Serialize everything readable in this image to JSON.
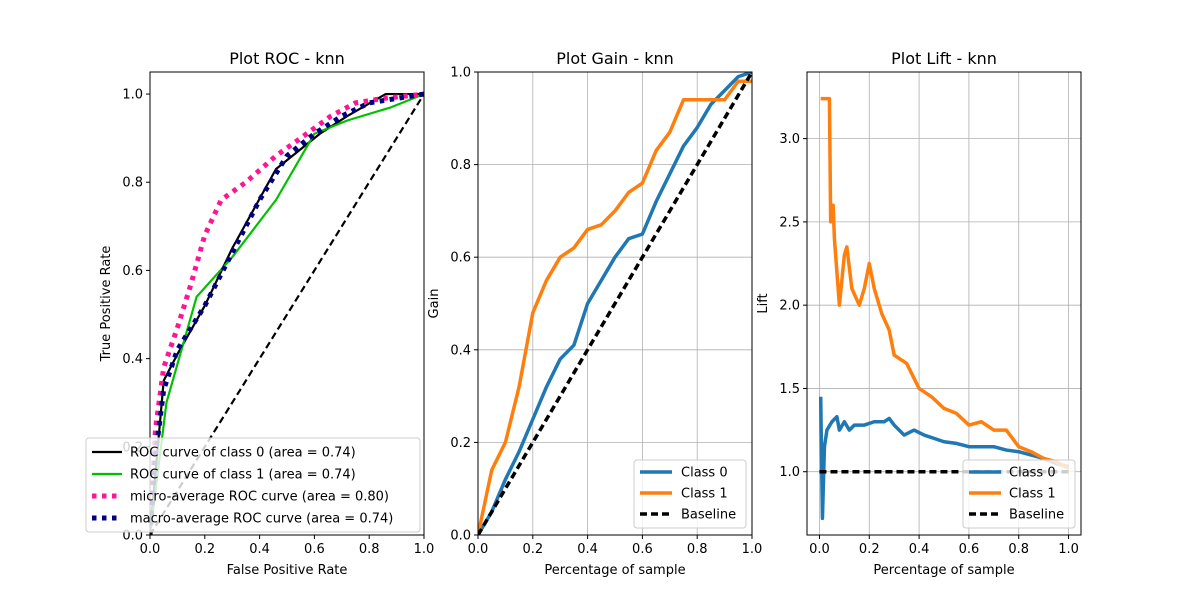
{
  "chart_data": [
    {
      "type": "line",
      "title": "Plot ROC - knn",
      "xlabel": "False Positive Rate",
      "ylabel": "True Positive Rate",
      "xlim": [
        0,
        1
      ],
      "ylim": [
        0,
        1.05
      ],
      "xticks": [
        0,
        0.2,
        0.4,
        0.6,
        0.8,
        1.0
      ],
      "xtick_labels": [
        "0.0",
        "0.2",
        "0.4",
        "0.6",
        "0.8",
        "1.0"
      ],
      "yticks": [
        0,
        0.2,
        0.4,
        0.6,
        0.8,
        1.0
      ],
      "ytick_labels": [
        "0.0",
        "0.2",
        "0.4",
        "0.6",
        "0.8",
        "1.0"
      ],
      "grid": false,
      "legend": "lower-left",
      "series": [
        {
          "name": "ROC curve of class 0 (area = 0.74)",
          "color": "#000000",
          "style": "solid",
          "x": [
            0,
            0.05,
            0.1,
            0.2,
            0.3,
            0.46,
            0.62,
            0.72,
            0.86,
            1.0
          ],
          "y": [
            0,
            0.35,
            0.41,
            0.52,
            0.65,
            0.83,
            0.91,
            0.95,
            1.0,
            1.0
          ]
        },
        {
          "name": "ROC curve of class 1 (area = 0.74)",
          "color": "#00c000",
          "style": "solid",
          "x": [
            0,
            0.06,
            0.17,
            0.3,
            0.46,
            0.6,
            0.72,
            0.88,
            1.0
          ],
          "y": [
            0,
            0.3,
            0.54,
            0.63,
            0.76,
            0.91,
            0.96,
            0.97,
            1.0
          ],
          "draw_y": [
            0,
            0.3,
            0.54,
            0.63,
            0.76,
            0.91,
            0.94,
            0.97,
            1.0
          ]
        },
        {
          "name": "micro-average ROC curve (area = 0.80)",
          "color": "#ff1493",
          "style": "dotted",
          "x": [
            0,
            0.02,
            0.05,
            0.1,
            0.15,
            0.2,
            0.26,
            0.35,
            0.46,
            0.55,
            0.66,
            0.75,
            0.85,
            1.0
          ],
          "y": [
            0,
            0.24,
            0.38,
            0.47,
            0.57,
            0.68,
            0.76,
            0.8,
            0.86,
            0.9,
            0.95,
            0.98,
            0.99,
            1.0
          ]
        },
        {
          "name": "macro-average ROC curve (area = 0.74)",
          "color": "#000080",
          "style": "dotted",
          "x": [
            0,
            0.02,
            0.05,
            0.1,
            0.2,
            0.3,
            0.4,
            0.5,
            0.6,
            0.7,
            0.8,
            0.9,
            1.0
          ],
          "y": [
            0,
            0.18,
            0.33,
            0.42,
            0.52,
            0.64,
            0.76,
            0.86,
            0.91,
            0.95,
            0.98,
            0.99,
            1.0
          ]
        },
        {
          "name": "",
          "color": "#000000",
          "style": "dashed",
          "x": [
            0,
            1
          ],
          "y": [
            0,
            1
          ]
        }
      ]
    },
    {
      "type": "line",
      "title": "Plot Gain - knn",
      "xlabel": "Percentage of sample",
      "ylabel": "Gain",
      "xlim": [
        0,
        1
      ],
      "ylim": [
        0,
        1
      ],
      "xticks": [
        0,
        0.2,
        0.4,
        0.6,
        0.8,
        1.0
      ],
      "xtick_labels": [
        "0.0",
        "0.2",
        "0.4",
        "0.6",
        "0.8",
        "1.0"
      ],
      "yticks": [
        0,
        0.2,
        0.4,
        0.6,
        0.8,
        1.0
      ],
      "ytick_labels": [
        "0.0",
        "0.2",
        "0.4",
        "0.6",
        "0.8",
        "1.0"
      ],
      "grid": true,
      "legend": "lower-right",
      "series": [
        {
          "name": "Class 0",
          "color": "#1f77b4",
          "style": "solid",
          "x": [
            0,
            0.05,
            0.1,
            0.15,
            0.2,
            0.25,
            0.3,
            0.35,
            0.4,
            0.45,
            0.5,
            0.55,
            0.6,
            0.65,
            0.7,
            0.75,
            0.8,
            0.85,
            0.9,
            0.95,
            1.0
          ],
          "y": [
            0,
            0.05,
            0.12,
            0.18,
            0.25,
            0.32,
            0.38,
            0.41,
            0.5,
            0.55,
            0.6,
            0.64,
            0.65,
            0.72,
            0.78,
            0.84,
            0.88,
            0.93,
            0.96,
            0.99,
            1.0
          ]
        },
        {
          "name": "Class 1",
          "color": "#ff7f0e",
          "style": "solid",
          "x": [
            0,
            0.05,
            0.1,
            0.15,
            0.2,
            0.25,
            0.3,
            0.35,
            0.4,
            0.45,
            0.5,
            0.55,
            0.6,
            0.65,
            0.7,
            0.75,
            0.8,
            0.85,
            0.9,
            0.95,
            1.0
          ],
          "y": [
            0,
            0.14,
            0.2,
            0.32,
            0.48,
            0.55,
            0.6,
            0.62,
            0.66,
            0.67,
            0.7,
            0.74,
            0.76,
            0.83,
            0.87,
            0.94,
            0.94,
            0.94,
            0.94,
            0.98,
            0.98
          ]
        },
        {
          "name": "Baseline",
          "color": "#000000",
          "style": "dashed",
          "x": [
            0,
            1
          ],
          "y": [
            0,
            1
          ]
        }
      ]
    },
    {
      "type": "line",
      "title": "Plot Lift - knn",
      "xlabel": "Percentage of sample",
      "ylabel": "Lift",
      "xlim": [
        -0.05,
        1.05
      ],
      "ylim": [
        0.62,
        3.4
      ],
      "xticks": [
        0,
        0.2,
        0.4,
        0.6,
        0.8,
        1.0
      ],
      "xtick_labels": [
        "0.0",
        "0.2",
        "0.4",
        "0.6",
        "0.8",
        "1.0"
      ],
      "yticks": [
        1.0,
        1.5,
        2.0,
        2.5,
        3.0
      ],
      "ytick_labels": [
        "1.0",
        "1.5",
        "2.0",
        "2.5",
        "3.0"
      ],
      "grid": true,
      "legend": "lower-right",
      "series": [
        {
          "name": "Class 0",
          "color": "#1f77b4",
          "style": "solid",
          "x": [
            0.005,
            0.012,
            0.02,
            0.03,
            0.05,
            0.07,
            0.08,
            0.1,
            0.12,
            0.14,
            0.18,
            0.22,
            0.26,
            0.28,
            0.3,
            0.34,
            0.38,
            0.42,
            0.46,
            0.5,
            0.55,
            0.6,
            0.65,
            0.7,
            0.75,
            0.8,
            0.85,
            0.9,
            0.95,
            1.0
          ],
          "y": [
            1.45,
            0.72,
            1.15,
            1.25,
            1.3,
            1.33,
            1.25,
            1.3,
            1.25,
            1.28,
            1.28,
            1.3,
            1.3,
            1.32,
            1.28,
            1.22,
            1.25,
            1.22,
            1.2,
            1.18,
            1.17,
            1.15,
            1.15,
            1.15,
            1.13,
            1.12,
            1.1,
            1.08,
            1.05,
            1.03
          ]
        },
        {
          "name": "Class 1",
          "color": "#ff7f0e",
          "style": "solid",
          "x": [
            0.005,
            0.04,
            0.045,
            0.055,
            0.06,
            0.08,
            0.1,
            0.11,
            0.13,
            0.16,
            0.18,
            0.2,
            0.22,
            0.25,
            0.28,
            0.3,
            0.35,
            0.4,
            0.45,
            0.5,
            0.55,
            0.6,
            0.65,
            0.7,
            0.75,
            0.8,
            0.85,
            0.9,
            0.95,
            1.0
          ],
          "y": [
            3.24,
            3.24,
            2.5,
            2.6,
            2.4,
            2.0,
            2.3,
            2.35,
            2.1,
            2.0,
            2.1,
            2.25,
            2.1,
            1.95,
            1.85,
            1.7,
            1.65,
            1.5,
            1.45,
            1.38,
            1.35,
            1.28,
            1.3,
            1.25,
            1.25,
            1.15,
            1.12,
            1.08,
            1.06,
            1.02
          ]
        },
        {
          "name": "Baseline",
          "color": "#000000",
          "style": "dashed",
          "x": [
            -0.0,
            1.0
          ],
          "y": [
            1.0,
            1.0
          ]
        }
      ]
    }
  ]
}
